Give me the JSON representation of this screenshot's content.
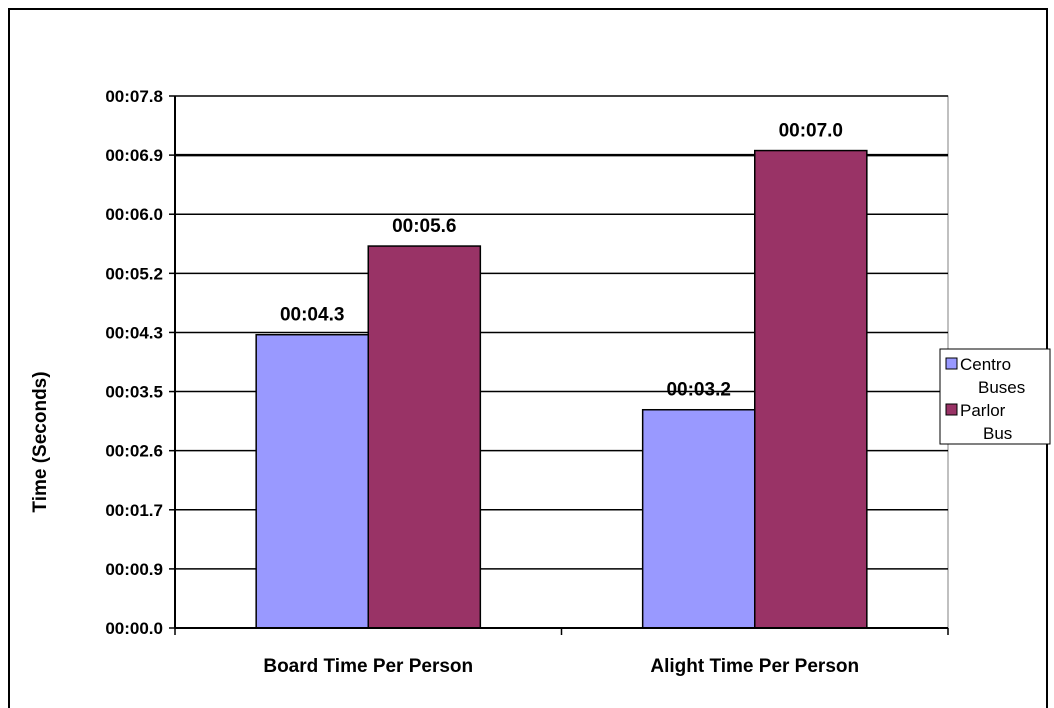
{
  "chart_data": {
    "type": "bar",
    "title": "",
    "xlabel": "",
    "ylabel": "Time (Seconds)",
    "ylim": [
      0,
      7.8
    ],
    "yticks": [
      "00:00.0",
      "00:00.9",
      "00:01.7",
      "00:02.6",
      "00:03.5",
      "00:04.3",
      "00:05.2",
      "00:06.0",
      "00:06.9",
      "00:07.8"
    ],
    "categories": [
      "Board Time Per Person",
      "Alight Time Per Person"
    ],
    "series": [
      {
        "name": "Centro Buses",
        "values": [
          4.3,
          3.2
        ],
        "labels": [
          "00:04.3",
          "00:03.2"
        ],
        "color": "#9999ff"
      },
      {
        "name": "Parlor Bus",
        "values": [
          5.6,
          7.0
        ],
        "labels": [
          "00:05.6",
          "00:07.0"
        ],
        "color": "#993366"
      }
    ],
    "legend": {
      "position": "right",
      "entries": [
        {
          "line1": "Centro",
          "line2": "Buses"
        },
        {
          "line1": "Parlor",
          "line2": "Bus"
        }
      ]
    },
    "grid": true
  }
}
